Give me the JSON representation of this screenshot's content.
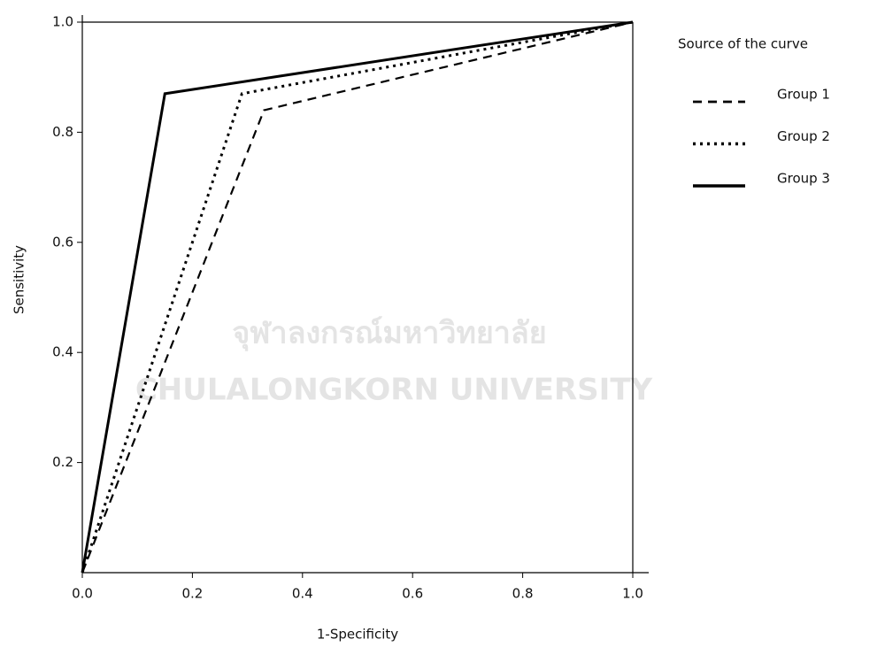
{
  "chart_data": {
    "type": "line",
    "x_label": "1-Specificity",
    "y_label": "Sensitivity",
    "legend_title": "Source of the curve",
    "legend": "right",
    "watermark": [
      "จุฬาลงกรณ์มหาวิทยาลัย",
      "Chulalongkorn University"
    ],
    "series": [
      {
        "name": "Group 1",
        "color": "#000000",
        "dash": "dashed",
        "x": [
          0,
          0.33,
          1
        ],
        "values": [
          0,
          0.84,
          1
        ]
      },
      {
        "name": "Group 2",
        "color": "#000000",
        "dash": "dotted",
        "x": [
          0,
          0.29,
          1
        ],
        "values": [
          0,
          0.87,
          1
        ]
      },
      {
        "name": "Group 3",
        "color": "#000000",
        "dash": "solid",
        "x": [
          0,
          0.15,
          1
        ],
        "values": [
          0,
          0.87,
          1
        ]
      }
    ],
    "xlim": [
      0,
      1
    ],
    "ylim": [
      0,
      1
    ],
    "xticks": [
      {
        "value": 0,
        "label": "0.0"
      },
      0.2,
      0.4,
      0.6,
      0.8,
      {
        "value": 1,
        "label": "1.0"
      }
    ],
    "yticks": [
      0.2,
      0.4,
      0.6,
      0.8,
      {
        "value": 1,
        "label": "1.0"
      }
    ],
    "grid": false
  }
}
